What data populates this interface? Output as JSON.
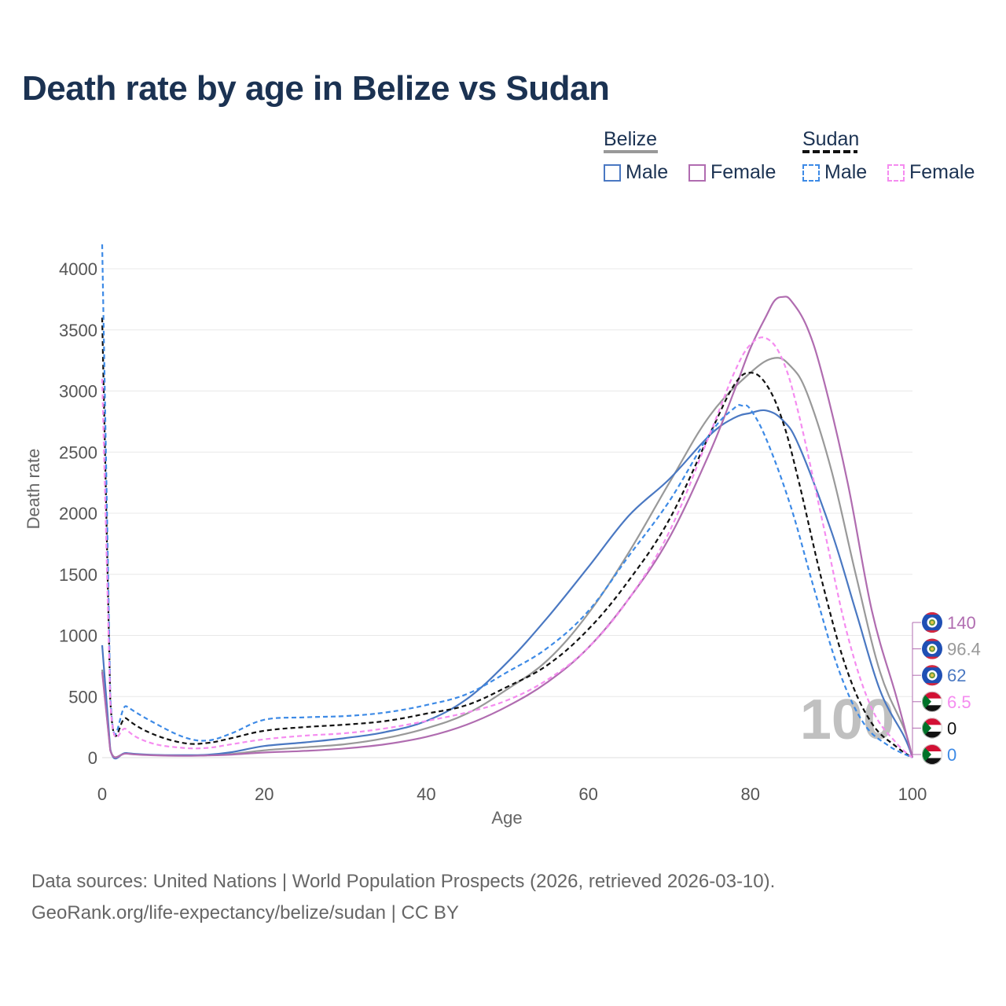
{
  "title": "Death rate by age in Belize vs Sudan",
  "legend": {
    "groups": [
      {
        "name": "Belize",
        "underline_color": "#999999",
        "underline_style": "solid",
        "items": [
          {
            "label": "Male",
            "color": "#4a78c2",
            "style": "solid"
          },
          {
            "label": "Female",
            "color": "#b06cb0",
            "style": "solid"
          }
        ]
      },
      {
        "name": "Sudan",
        "underline_color": "#111111",
        "underline_style": "dashed",
        "items": [
          {
            "label": "Male",
            "color": "#3d8ae6",
            "style": "dashed"
          },
          {
            "label": "Female",
            "color": "#f58cf0",
            "style": "dashed"
          }
        ]
      }
    ]
  },
  "chart_data": {
    "type": "line",
    "title": "Death rate by age in Belize vs Sudan",
    "xlabel": "Age",
    "ylabel": "Death rate",
    "xlim": [
      0,
      100
    ],
    "ylim": [
      0,
      4200
    ],
    "x_ticks": [
      0,
      20,
      40,
      60,
      80,
      100
    ],
    "y_ticks": [
      0,
      500,
      1000,
      1500,
      2000,
      2500,
      3000,
      3500,
      4000
    ],
    "grid": true,
    "watermark": "100",
    "series": [
      {
        "name": "Belize Total",
        "color": "#999999",
        "dash": false,
        "x": [
          0,
          1,
          3,
          6,
          10,
          13,
          16,
          20,
          25,
          30,
          35,
          40,
          45,
          50,
          55,
          60,
          65,
          70,
          75,
          80,
          83,
          85,
          87,
          90,
          93,
          96,
          99,
          100
        ],
        "y": [
          720,
          65,
          35,
          22,
          18,
          20,
          30,
          60,
          85,
          110,
          160,
          240,
          360,
          560,
          800,
          1180,
          1680,
          2250,
          2800,
          3150,
          3270,
          3200,
          2980,
          2350,
          1500,
          700,
          230,
          0
        ]
      },
      {
        "name": "Belize Male",
        "color": "#4a78c2",
        "dash": false,
        "x": [
          0,
          1,
          3,
          6,
          10,
          13,
          16,
          20,
          25,
          30,
          35,
          40,
          45,
          50,
          55,
          60,
          65,
          70,
          75,
          78,
          80,
          82,
          84,
          86,
          90,
          93,
          96,
          99,
          100
        ],
        "y": [
          920,
          70,
          38,
          24,
          20,
          24,
          45,
          95,
          125,
          160,
          210,
          300,
          480,
          780,
          1150,
          1560,
          1980,
          2280,
          2640,
          2780,
          2820,
          2840,
          2760,
          2550,
          1850,
          1200,
          550,
          170,
          0
        ]
      },
      {
        "name": "Belize Female",
        "color": "#b06cb0",
        "dash": false,
        "x": [
          0,
          1,
          3,
          6,
          10,
          13,
          16,
          20,
          25,
          30,
          35,
          40,
          45,
          50,
          55,
          60,
          65,
          70,
          75,
          78,
          80,
          82,
          83,
          84,
          85,
          87,
          89,
          92,
          95,
          98,
          100
        ],
        "y": [
          700,
          60,
          33,
          20,
          15,
          18,
          25,
          42,
          55,
          75,
          110,
          170,
          270,
          420,
          620,
          900,
          1300,
          1800,
          2500,
          3000,
          3350,
          3620,
          3740,
          3770,
          3740,
          3520,
          3100,
          2250,
          1200,
          500,
          0
        ]
      },
      {
        "name": "Sudan Total",
        "color": "#111111",
        "dash": true,
        "x": [
          0,
          1,
          3,
          6,
          10,
          13,
          16,
          20,
          25,
          30,
          35,
          40,
          45,
          50,
          55,
          60,
          65,
          70,
          75,
          78,
          80,
          82,
          84,
          86,
          89,
          92,
          95,
          98,
          100
        ],
        "y": [
          3600,
          470,
          320,
          200,
          120,
          120,
          160,
          220,
          250,
          270,
          300,
          360,
          430,
          580,
          760,
          1050,
          1450,
          1950,
          2650,
          3050,
          3150,
          3050,
          2750,
          2250,
          1400,
          700,
          280,
          90,
          0
        ]
      },
      {
        "name": "Sudan Male",
        "color": "#3d8ae6",
        "dash": true,
        "x": [
          0,
          1,
          3,
          6,
          10,
          13,
          16,
          20,
          25,
          30,
          35,
          40,
          45,
          50,
          55,
          60,
          65,
          70,
          75,
          78,
          79,
          80,
          82,
          85,
          88,
          91,
          94,
          97,
          100
        ],
        "y": [
          4200,
          510,
          420,
          300,
          170,
          140,
          200,
          310,
          330,
          340,
          370,
          430,
          520,
          700,
          900,
          1200,
          1650,
          2100,
          2650,
          2860,
          2880,
          2850,
          2600,
          2050,
          1350,
          700,
          280,
          100,
          0
        ]
      },
      {
        "name": "Sudan Female",
        "color": "#f58cf0",
        "dash": true,
        "x": [
          0,
          1,
          3,
          6,
          10,
          13,
          16,
          20,
          25,
          30,
          35,
          40,
          45,
          50,
          55,
          60,
          65,
          70,
          75,
          78,
          80,
          82,
          84,
          86,
          89,
          92,
          95,
          98,
          100
        ],
        "y": [
          3100,
          450,
          230,
          120,
          80,
          80,
          110,
          150,
          180,
          200,
          240,
          300,
          370,
          470,
          640,
          900,
          1300,
          1850,
          2650,
          3150,
          3380,
          3430,
          3250,
          2800,
          1900,
          1000,
          400,
          120,
          0
        ]
      }
    ],
    "end_labels": [
      {
        "value": "140",
        "country": "Belize",
        "color": "#b06cb0"
      },
      {
        "value": "96.4",
        "country": "Belize",
        "color": "#999999"
      },
      {
        "value": "62",
        "country": "Belize",
        "color": "#4a78c2"
      },
      {
        "value": "6.5",
        "country": "Sudan",
        "color": "#f58cf0"
      },
      {
        "value": "0",
        "country": "Sudan",
        "color": "#111111"
      },
      {
        "value": "0",
        "country": "Sudan",
        "color": "#3d8ae6"
      }
    ]
  },
  "footer": {
    "line1": "Data sources: United Nations | World Population Prospects (2026, retrieved 2026-03-10).",
    "line2": "GeoRank.org/life-expectancy/belize/sudan | CC BY"
  }
}
